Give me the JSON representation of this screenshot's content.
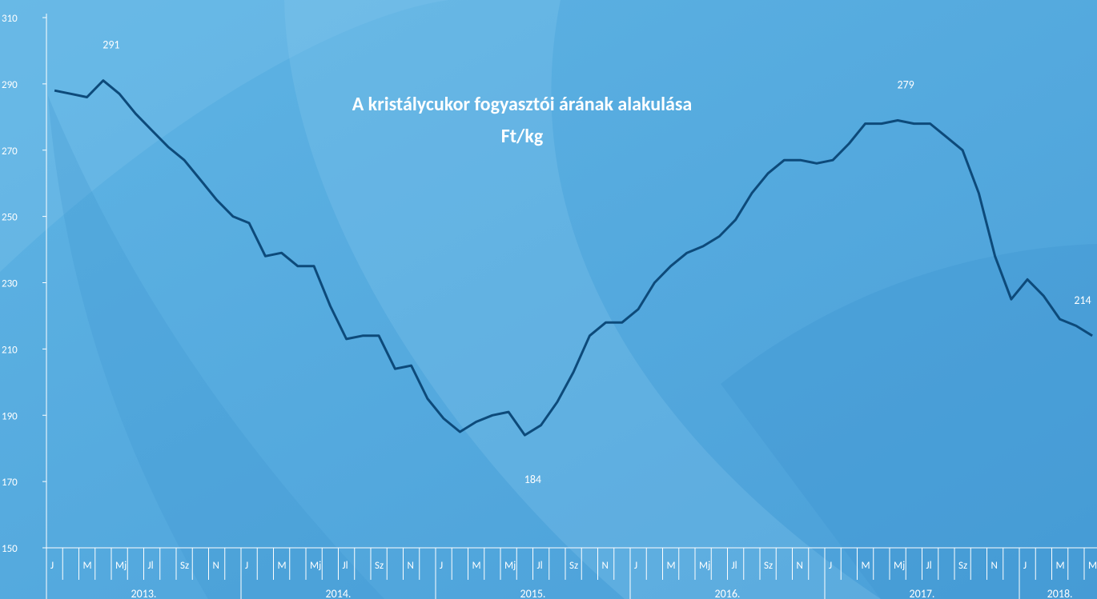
{
  "chart_data": {
    "type": "line",
    "title": "A kristálycukor fogyasztói árának alakulása",
    "subtitle": "Ft/kg",
    "categories": [
      "J",
      null,
      "M",
      null,
      "Mj",
      null,
      "Jl",
      null,
      "Sz",
      null,
      "N",
      null,
      "J",
      null,
      "M",
      null,
      "Mj",
      null,
      "Jl",
      null,
      "Sz",
      null,
      "N",
      null,
      "J",
      null,
      "M",
      null,
      "Mj",
      null,
      "Jl",
      null,
      "Sz",
      null,
      "N",
      null,
      "J",
      null,
      "M",
      null,
      "Mj",
      null,
      "Jl",
      null,
      "Sz",
      null,
      "N",
      null,
      "J",
      null,
      "M",
      null,
      "Mj",
      null,
      "Jl",
      null,
      "Sz",
      null,
      "N",
      null,
      "J",
      null,
      "M",
      null,
      "M"
    ],
    "groups": [
      {
        "label": "2013.",
        "span": 12
      },
      {
        "label": "2014.",
        "span": 12
      },
      {
        "label": "2015.",
        "span": 12
      },
      {
        "label": "2016.",
        "span": 12
      },
      {
        "label": "2017.",
        "span": 12
      },
      {
        "label": "2018.",
        "span": 5
      }
    ],
    "series": [
      {
        "color": "#0d4a7a",
        "values": [
          288,
          287,
          286,
          291,
          287,
          281,
          276,
          271,
          267,
          261,
          255,
          250,
          248,
          238,
          239,
          235,
          235,
          223,
          213,
          214,
          214,
          204,
          205,
          195,
          189,
          185,
          188,
          190,
          191,
          184,
          187,
          194,
          203,
          214,
          218,
          218,
          222,
          230,
          235,
          239,
          241,
          244,
          249,
          257,
          263,
          267,
          267,
          266,
          267,
          272,
          278,
          278,
          279,
          278,
          278,
          274,
          270,
          257,
          238,
          225,
          231,
          226,
          219,
          217,
          214
        ]
      }
    ],
    "labeled_indices": [
      3,
      29,
      52,
      64
    ],
    "ylim": [
      150,
      310
    ],
    "yticks": [
      150,
      170,
      190,
      210,
      230,
      250,
      270,
      290,
      310
    ],
    "grid": false
  }
}
